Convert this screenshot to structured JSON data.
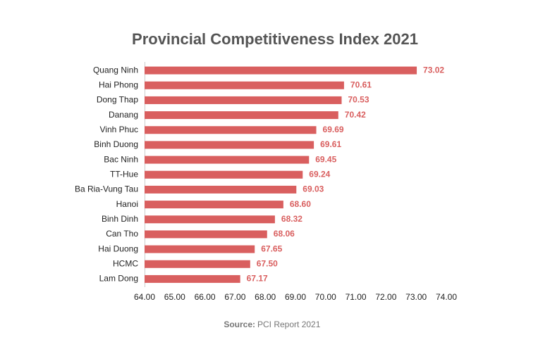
{
  "chart_data": {
    "type": "hbar",
    "title": "Provincial Competitiveness Index 2021",
    "categories": [
      "Quang Ninh",
      "Hai Phong",
      "Dong Thap",
      "Danang",
      "Vinh Phuc",
      "Binh Duong",
      "Bac Ninh",
      "TT-Hue",
      "Ba Ria-Vung Tau",
      "Hanoi",
      "Binh Dinh",
      "Can Tho",
      "Hai Duong",
      "HCMC",
      "Lam Dong"
    ],
    "values": [
      73.02,
      70.61,
      70.53,
      70.42,
      69.69,
      69.61,
      69.45,
      69.24,
      69.03,
      68.6,
      68.32,
      68.06,
      67.65,
      67.5,
      67.17
    ],
    "value_labels": [
      "73.02",
      "70.61",
      "70.53",
      "70.42",
      "69.69",
      "69.61",
      "69.45",
      "69.24",
      "69.03",
      "68.60",
      "68.32",
      "68.06",
      "67.65",
      "67.50",
      "67.17"
    ],
    "color": "#d95f5f",
    "xlim": [
      64,
      74
    ],
    "xticks": [
      {
        "value": 64,
        "label": "64.00"
      },
      {
        "value": 65,
        "label": "65.00"
      },
      {
        "value": 66,
        "label": "66.00"
      },
      {
        "value": 67,
        "label": "67.00"
      },
      {
        "value": 68,
        "label": "68.00"
      },
      {
        "value": 69,
        "label": "69.00"
      },
      {
        "value": 70,
        "label": "70.00"
      },
      {
        "value": 71,
        "label": "71.00"
      },
      {
        "value": 72,
        "label": "72.00"
      },
      {
        "value": 73,
        "label": "73.00"
      },
      {
        "value": 74,
        "label": "74.00"
      }
    ],
    "grid": false,
    "source_label": "Source:",
    "source": "PCI Report 2021"
  }
}
